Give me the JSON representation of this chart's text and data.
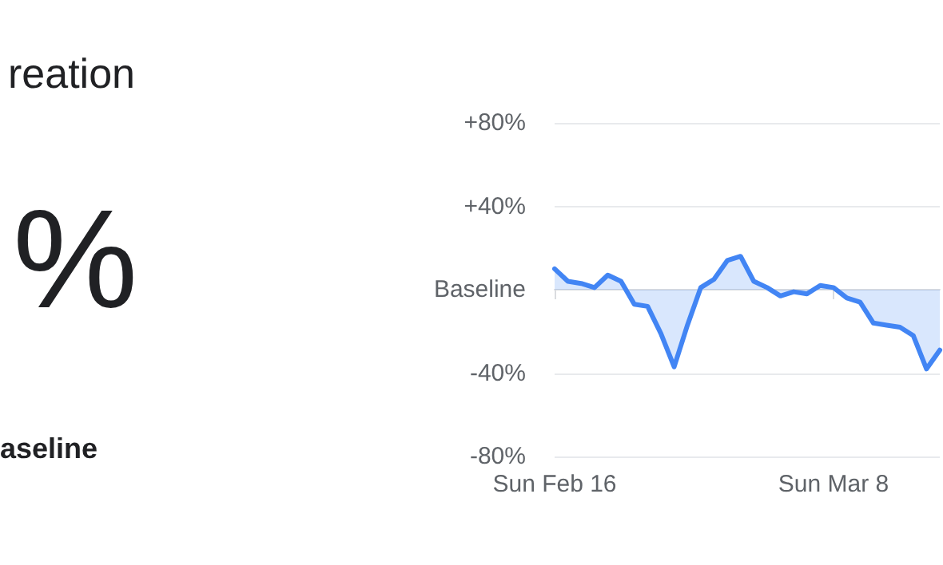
{
  "chart_data": {
    "type": "area",
    "title": "reation",
    "annotations": [
      "%",
      "aseline"
    ],
    "x": [
      "--02-16",
      "--02-17",
      "--02-18",
      "--02-19",
      "--02-20",
      "--02-21",
      "--02-22",
      "--02-23",
      "--02-24",
      "--02-25",
      "--02-26",
      "--02-27",
      "--02-28",
      "--02-29",
      "--03-01",
      "--03-02",
      "--03-03",
      "--03-04",
      "--03-05",
      "--03-06",
      "--03-07",
      "--03-08",
      "--03-09",
      "--03-10",
      "--03-11",
      "--03-12",
      "--03-13",
      "--03-14",
      "--03-15",
      "--03-16"
    ],
    "series": [
      {
        "color": "#4285f4",
        "values": [
          10,
          4,
          3,
          1,
          7,
          4,
          -7,
          -8,
          -21,
          -37,
          -17,
          1,
          5,
          14,
          16,
          4,
          1,
          -3,
          -1,
          -2,
          2,
          1,
          -4,
          -6,
          -16,
          -17,
          -18,
          -22,
          -38,
          -29
        ]
      }
    ],
    "xlim": [
      "--02-16",
      "--03-16"
    ],
    "xticks": [
      {
        "value": "--02-16",
        "label": "Sun Feb 16"
      },
      {
        "value": "--03-08",
        "label": "Sun Mar 8"
      }
    ],
    "ylim": [
      -80,
      80
    ],
    "yticks": [
      {
        "value": -80,
        "label": "-80%"
      },
      {
        "value": -40,
        "label": "-40%"
      },
      {
        "value": 0,
        "label": "Baseline"
      },
      {
        "value": 40,
        "label": "+40%"
      },
      {
        "value": 80,
        "label": "+80%"
      }
    ],
    "grid": "y"
  }
}
